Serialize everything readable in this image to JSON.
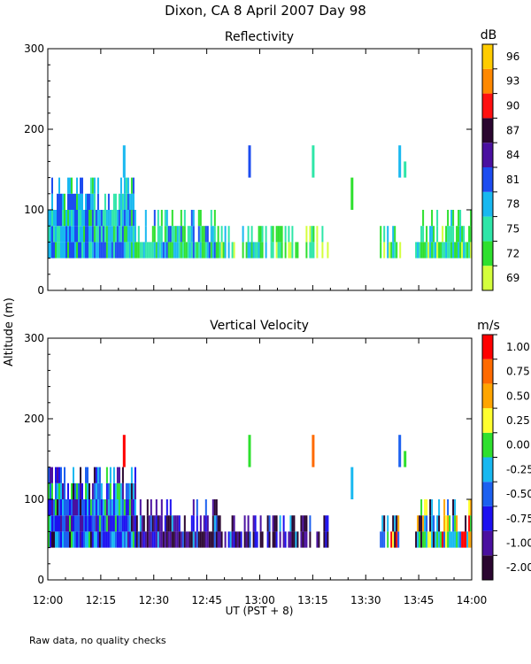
{
  "figure": {
    "title": "Dixon, CA   8 April 2007   Day   98",
    "footnote": "Raw data, no quality checks",
    "shared_ylabel": "Altitude (m)",
    "shared_xlabel": "UT  (PST + 8)"
  },
  "chart_data": [
    {
      "type": "heatmap",
      "title": "Reflectivity",
      "colorbar_unit": "dB",
      "xlabel": "UT  (PST + 8)",
      "ylabel": "Altitude (m)",
      "xlim_minutes": [
        0,
        120
      ],
      "x_ticks": [
        {
          "minutes": 0,
          "label": "12:00"
        },
        {
          "minutes": 15,
          "label": "12:15"
        },
        {
          "minutes": 30,
          "label": "12:30"
        },
        {
          "minutes": 45,
          "label": "12:45"
        },
        {
          "minutes": 60,
          "label": "13:00"
        },
        {
          "minutes": 75,
          "label": "13:15"
        },
        {
          "minutes": 90,
          "label": "13:30"
        },
        {
          "minutes": 105,
          "label": "13:45"
        },
        {
          "minutes": 120,
          "label": "14:00"
        }
      ],
      "ylim": [
        0,
        300
      ],
      "y_ticks": [
        0,
        100,
        200,
        300
      ],
      "colorbar": {
        "labels": [
          "69",
          "72",
          "75",
          "78",
          "81",
          "84",
          "87",
          "90",
          "93",
          "96"
        ],
        "colors": [
          "#d4ff3c",
          "#2ee02e",
          "#2ee6a8",
          "#18b8f0",
          "#1c4cf0",
          "#4a10a0",
          "#2a0630",
          "#ff1010",
          "#ff8800",
          "#ffcc00"
        ]
      },
      "segments": [
        {
          "start_min": 0,
          "end_min": 12,
          "bottom_m": 40,
          "top_m": 140,
          "scheme": "refl_dense"
        },
        {
          "start_min": 12,
          "end_min": 25,
          "bottom_m": 40,
          "top_m": 140,
          "scheme": "refl_dense"
        },
        {
          "start_min": 25,
          "end_min": 48,
          "bottom_m": 40,
          "top_m": 100,
          "scheme": "refl_mid"
        },
        {
          "start_min": 48,
          "end_min": 68,
          "bottom_m": 40,
          "top_m": 80,
          "scheme": "refl_light"
        },
        {
          "start_min": 68,
          "end_min": 80,
          "bottom_m": 40,
          "top_m": 80,
          "scheme": "refl_yellowgreen"
        },
        {
          "start_min": 94,
          "end_min": 100,
          "bottom_m": 40,
          "top_m": 80,
          "scheme": "refl_light"
        },
        {
          "start_min": 104,
          "end_min": 120,
          "bottom_m": 40,
          "top_m": 100,
          "scheme": "refl_light"
        }
      ],
      "features": [
        {
          "minute": 21.5,
          "bottom_m": 140,
          "top_m": 180,
          "color": "#18b8f0"
        },
        {
          "minute": 57,
          "bottom_m": 140,
          "top_m": 180,
          "color": "#1c4cf0"
        },
        {
          "minute": 75,
          "bottom_m": 140,
          "top_m": 180,
          "color": "#2ee6a8"
        },
        {
          "minute": 86,
          "bottom_m": 100,
          "top_m": 140,
          "color": "#2ee02e"
        },
        {
          "minute": 99.5,
          "bottom_m": 140,
          "top_m": 180,
          "color": "#18b8f0"
        },
        {
          "minute": 101,
          "bottom_m": 140,
          "top_m": 160,
          "color": "#2ee6a8"
        }
      ]
    },
    {
      "type": "heatmap",
      "title": "Vertical Velocity",
      "colorbar_unit": "m/s",
      "xlabel": "UT  (PST + 8)",
      "ylabel": "Altitude (m)",
      "xlim_minutes": [
        0,
        120
      ],
      "x_ticks": [
        {
          "minutes": 0,
          "label": "12:00"
        },
        {
          "minutes": 15,
          "label": "12:15"
        },
        {
          "minutes": 30,
          "label": "12:30"
        },
        {
          "minutes": 45,
          "label": "12:45"
        },
        {
          "minutes": 60,
          "label": "13:00"
        },
        {
          "minutes": 75,
          "label": "13:15"
        },
        {
          "minutes": 90,
          "label": "13:30"
        },
        {
          "minutes": 105,
          "label": "13:45"
        },
        {
          "minutes": 120,
          "label": "14:00"
        }
      ],
      "ylim": [
        0,
        300
      ],
      "y_ticks": [
        0,
        100,
        200,
        300
      ],
      "colorbar": {
        "labels": [
          "-2.00",
          "-1.00",
          "-0.75",
          "-0.50",
          "-0.25",
          "0.00",
          "0.25",
          "0.50",
          "0.75",
          "1.00"
        ],
        "colors": [
          "#2a0630",
          "#4a10a0",
          "#1c10f0",
          "#1c60f0",
          "#18b8f0",
          "#2ee02e",
          "#ffff30",
          "#ffa500",
          "#ff6a00",
          "#ff0000"
        ]
      },
      "segments": [
        {
          "start_min": 0,
          "end_min": 12,
          "bottom_m": 40,
          "top_m": 140,
          "scheme": "vel_dense"
        },
        {
          "start_min": 12,
          "end_min": 25,
          "bottom_m": 40,
          "top_m": 140,
          "scheme": "vel_dense"
        },
        {
          "start_min": 25,
          "end_min": 48,
          "bottom_m": 40,
          "top_m": 100,
          "scheme": "vel_dark"
        },
        {
          "start_min": 48,
          "end_min": 68,
          "bottom_m": 40,
          "top_m": 80,
          "scheme": "vel_dark"
        },
        {
          "start_min": 68,
          "end_min": 80,
          "bottom_m": 40,
          "top_m": 80,
          "scheme": "vel_dark"
        },
        {
          "start_min": 94,
          "end_min": 100,
          "bottom_m": 40,
          "top_m": 80,
          "scheme": "vel_mixed"
        },
        {
          "start_min": 104,
          "end_min": 120,
          "bottom_m": 40,
          "top_m": 100,
          "scheme": "vel_mixed"
        }
      ],
      "features": [
        {
          "minute": 21.5,
          "bottom_m": 140,
          "top_m": 180,
          "color": "#ff0000"
        },
        {
          "minute": 57,
          "bottom_m": 140,
          "top_m": 180,
          "color": "#2ee02e"
        },
        {
          "minute": 75,
          "bottom_m": 140,
          "top_m": 180,
          "color": "#ff6a00"
        },
        {
          "minute": 86,
          "bottom_m": 100,
          "top_m": 140,
          "color": "#18b8f0"
        },
        {
          "minute": 99.5,
          "bottom_m": 140,
          "top_m": 180,
          "color": "#1c60f0"
        },
        {
          "minute": 101,
          "bottom_m": 140,
          "top_m": 160,
          "color": "#2ee02e"
        }
      ]
    }
  ]
}
